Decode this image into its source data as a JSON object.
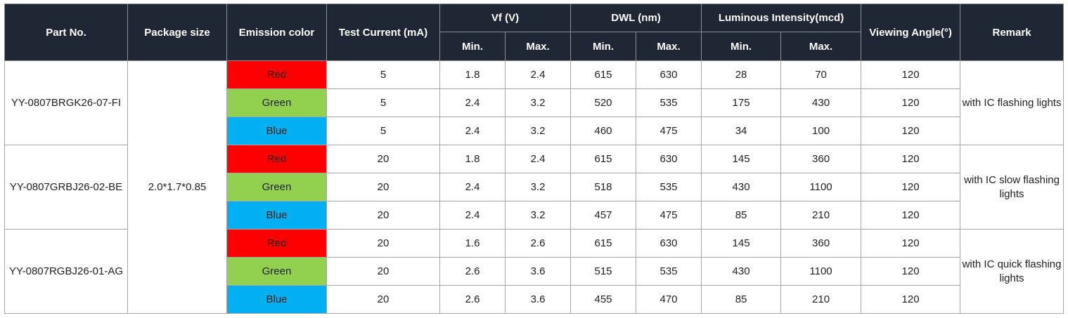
{
  "header": {
    "part_no": "Part No.",
    "package_size": "Package size",
    "emission_color": "Emission color",
    "test_current": "Test Current (mA)",
    "vf": "Vf (V)",
    "dwl": "DWL (nm)",
    "luminous": "Luminous Intensity(mcd)",
    "viewing_angle": "Viewing Angle(°)",
    "remark": "Remark",
    "min": "Min.",
    "max": "Max."
  },
  "colors": {
    "Red": "#ff0000",
    "Green": "#92d050",
    "Blue": "#00b0f0",
    "header_bg": "#1f2734"
  },
  "package_size": "2.0*1.7*0.85",
  "parts": [
    {
      "part_no": "YY-0807BRGK26-07-FI",
      "remark": "with IC flashing lights",
      "rows": [
        {
          "color": "Red",
          "current": "5",
          "vf_min": "1.8",
          "vf_max": "2.4",
          "dwl_min": "615",
          "dwl_max": "630",
          "iv_min": "28",
          "iv_max": "70",
          "angle": "120"
        },
        {
          "color": "Green",
          "current": "5",
          "vf_min": "2.4",
          "vf_max": "3.2",
          "dwl_min": "520",
          "dwl_max": "535",
          "iv_min": "175",
          "iv_max": "430",
          "angle": "120"
        },
        {
          "color": "Blue",
          "current": "5",
          "vf_min": "2.4",
          "vf_max": "3.2",
          "dwl_min": "460",
          "dwl_max": "475",
          "iv_min": "34",
          "iv_max": "100",
          "angle": "120"
        }
      ]
    },
    {
      "part_no": "YY-0807GRBJ26-02-BE",
      "remark": "with IC slow flashing lights",
      "rows": [
        {
          "color": "Red",
          "current": "20",
          "vf_min": "1.8",
          "vf_max": "2.4",
          "dwl_min": "615",
          "dwl_max": "630",
          "iv_min": "145",
          "iv_max": "360",
          "angle": "120"
        },
        {
          "color": "Green",
          "current": "20",
          "vf_min": "2.4",
          "vf_max": "3.2",
          "dwl_min": "518",
          "dwl_max": "535",
          "iv_min": "430",
          "iv_max": "1100",
          "angle": "120"
        },
        {
          "color": "Blue",
          "current": "20",
          "vf_min": "2.4",
          "vf_max": "3.2",
          "dwl_min": "457",
          "dwl_max": "475",
          "iv_min": "85",
          "iv_max": "210",
          "angle": "120"
        }
      ]
    },
    {
      "part_no": "YY-0807RGBJ26-01-AG",
      "remark": "with IC quick flashing lights",
      "rows": [
        {
          "color": "Red",
          "current": "20",
          "vf_min": "1.6",
          "vf_max": "2.6",
          "dwl_min": "615",
          "dwl_max": "630",
          "iv_min": "145",
          "iv_max": "360",
          "angle": "120"
        },
        {
          "color": "Green",
          "current": "20",
          "vf_min": "2.6",
          "vf_max": "3.6",
          "dwl_min": "515",
          "dwl_max": "535",
          "iv_min": "430",
          "iv_max": "1100",
          "angle": "120"
        },
        {
          "color": "Blue",
          "current": "20",
          "vf_min": "2.6",
          "vf_max": "3.6",
          "dwl_min": "455",
          "dwl_max": "470",
          "iv_min": "85",
          "iv_max": "210",
          "angle": "120"
        }
      ]
    }
  ]
}
